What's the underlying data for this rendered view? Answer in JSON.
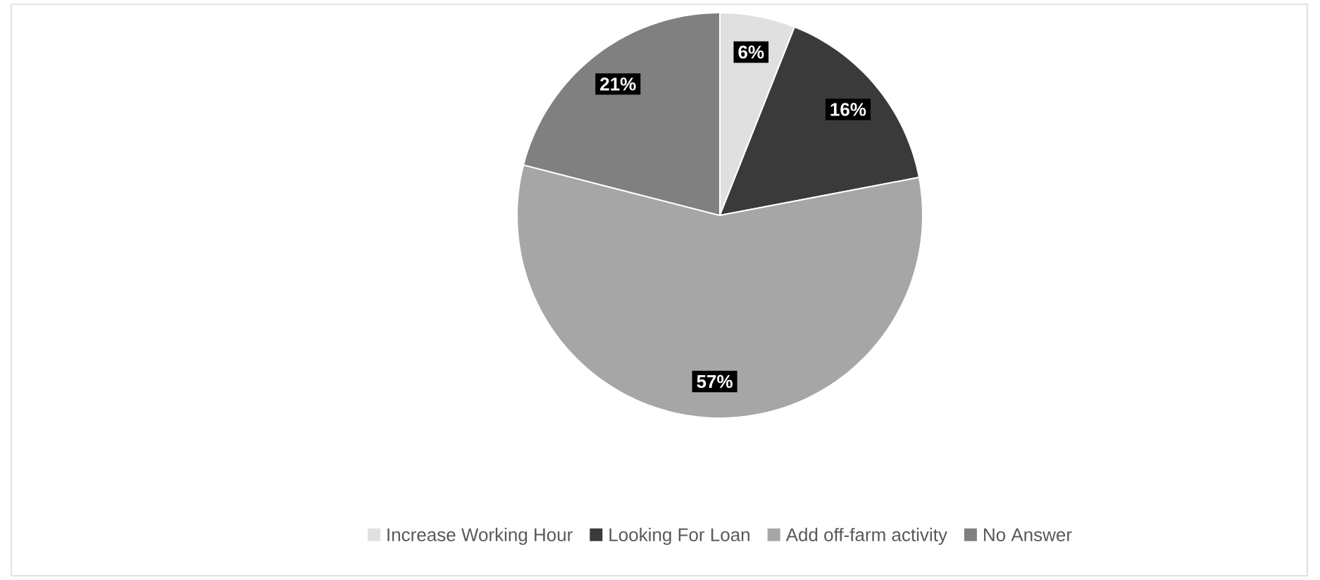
{
  "chart_data": {
    "type": "pie",
    "categories": [
      "Increase Working Hour",
      "Looking For Loan",
      "Add off-farm activity",
      "No Answer"
    ],
    "values": [
      6,
      16,
      57,
      21
    ],
    "value_labels": [
      "6%",
      "16%",
      "57%",
      "21%"
    ],
    "colors": [
      "#e0e0e0",
      "#3a3a3a",
      "#a6a6a6",
      "#808080"
    ],
    "legend": "bottom"
  }
}
